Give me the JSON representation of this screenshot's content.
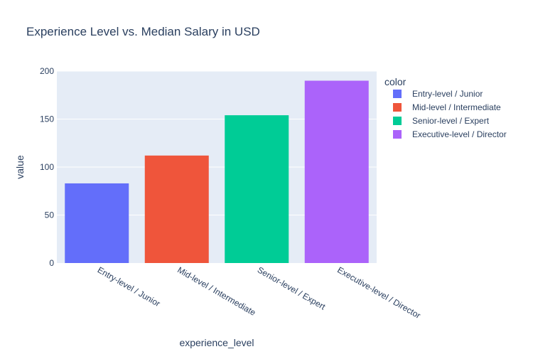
{
  "chart_data": {
    "type": "bar",
    "title": "Experience Level vs. Median Salary in USD",
    "xlabel": "experience_level",
    "ylabel": "value",
    "categories": [
      "Entry-level / Junior",
      "Mid-level / Intermediate",
      "Senior-level / Expert",
      "Executive-level / Director"
    ],
    "values": [
      83,
      112,
      154,
      190
    ],
    "colors": [
      "#636efa",
      "#ef553b",
      "#00cc96",
      "#ab63fa"
    ],
    "ylim": [
      0,
      200
    ],
    "yticks": [
      0,
      50,
      100,
      150,
      200
    ],
    "grid": true,
    "legend": {
      "title": "color",
      "placement": "right",
      "entries": [
        "Entry-level / Junior",
        "Mid-level / Intermediate",
        "Senior-level / Expert",
        "Executive-level / Director"
      ]
    },
    "plot_background": "#e5ecf6",
    "text_color": "#2a3f5f"
  }
}
